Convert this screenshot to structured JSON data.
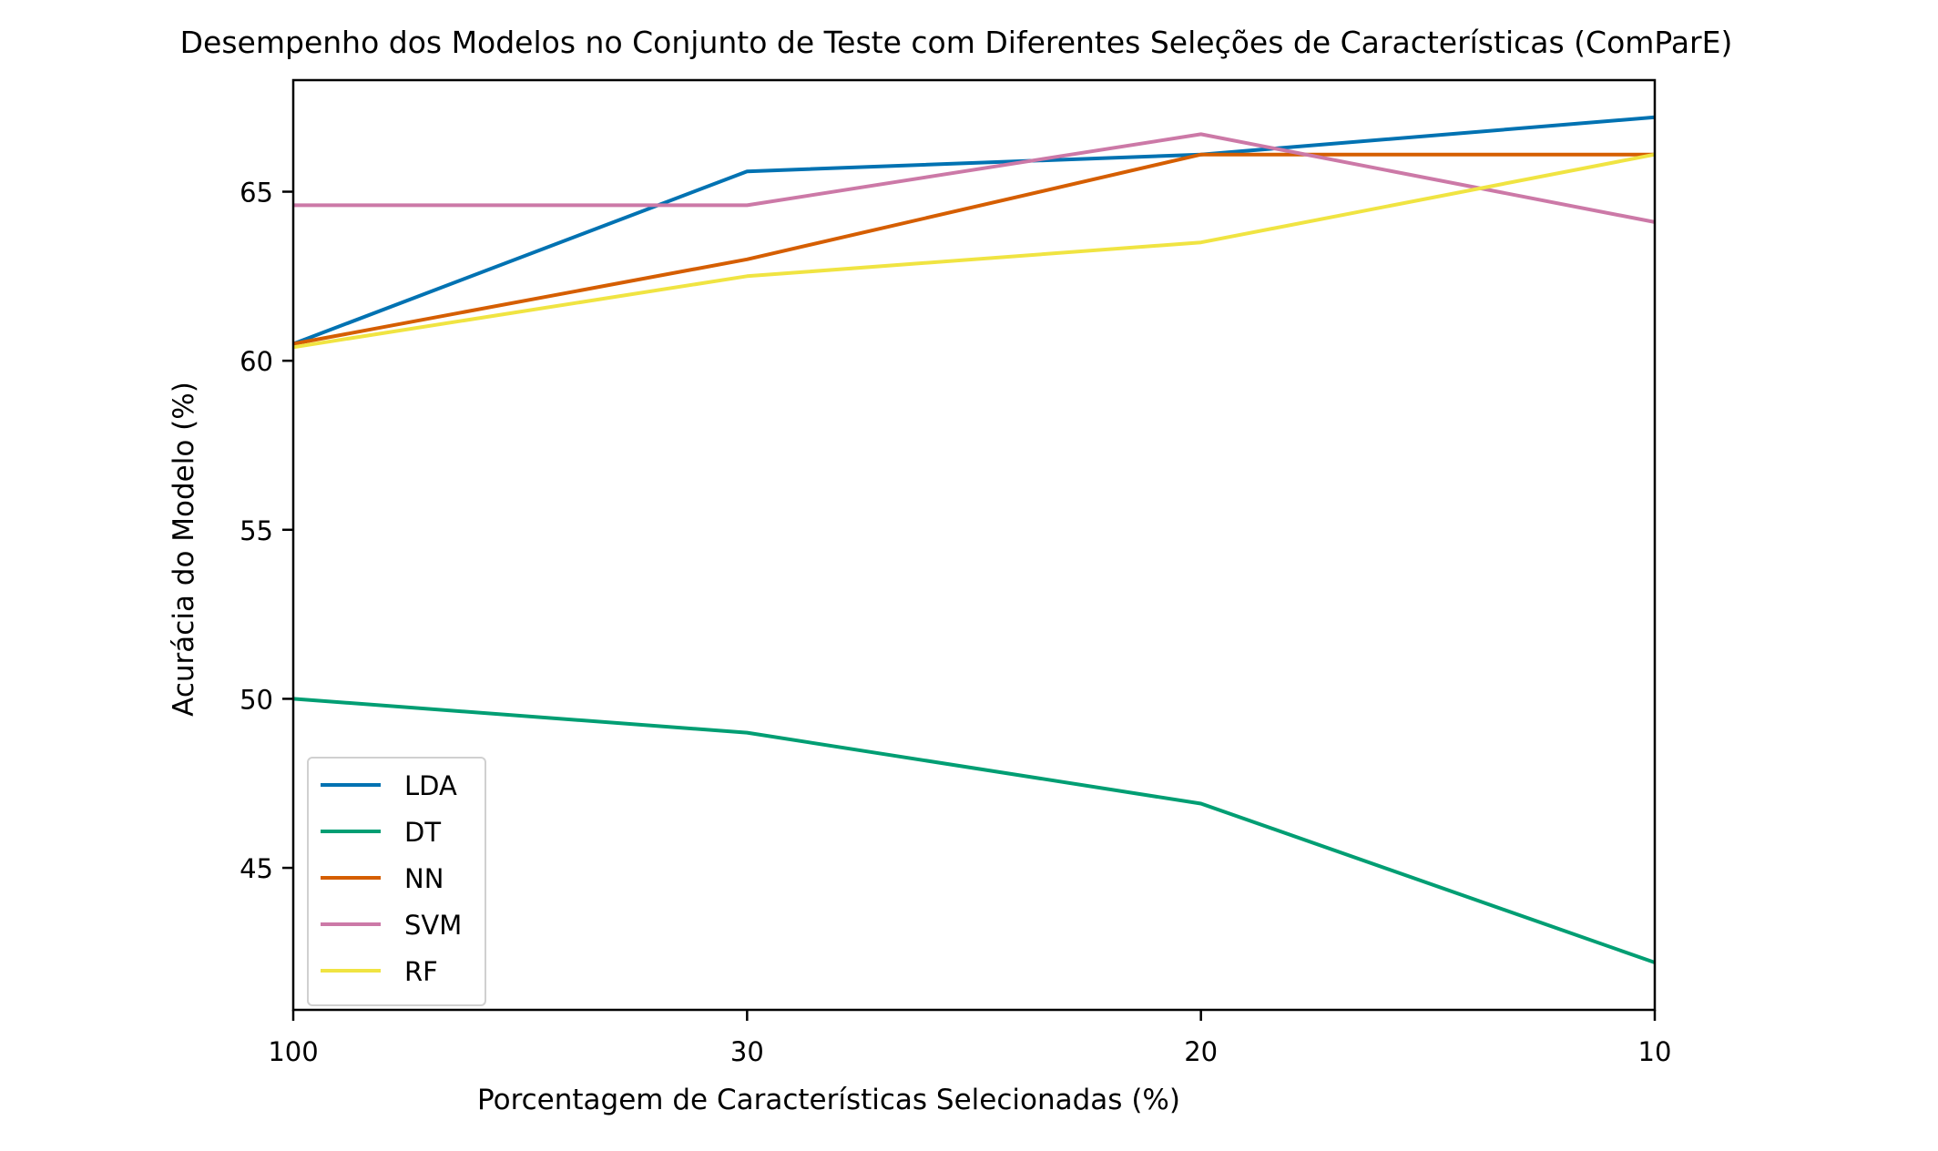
{
  "chart_data": {
    "type": "line",
    "title": "Desempenho dos Modelos no Conjunto de Teste com Diferentes Seleções de Características (ComParE)",
    "xlabel": "Porcentagem de Características Selecionadas (%)",
    "ylabel": "Acurácia do Modelo (%)",
    "categories": [
      "100",
      "30",
      "20",
      "10"
    ],
    "ylim": [
      40.8,
      68.3
    ],
    "yticks": [
      45,
      50,
      55,
      60,
      65
    ],
    "grid": false,
    "legend_position": "lower-left",
    "series": [
      {
        "name": "LDA",
        "color": "#0072b2",
        "values": [
          60.5,
          65.6,
          66.1,
          67.2
        ]
      },
      {
        "name": "DT",
        "color": "#009e73",
        "values": [
          50.0,
          49.0,
          46.9,
          42.2
        ]
      },
      {
        "name": "NN",
        "color": "#d55e00",
        "values": [
          60.5,
          63.0,
          66.1,
          66.1
        ]
      },
      {
        "name": "SVM",
        "color": "#cc79a7",
        "values": [
          64.6,
          64.6,
          66.7,
          64.1
        ]
      },
      {
        "name": "RF",
        "color": "#f0e442",
        "values": [
          60.4,
          62.5,
          63.5,
          66.1
        ]
      }
    ]
  }
}
